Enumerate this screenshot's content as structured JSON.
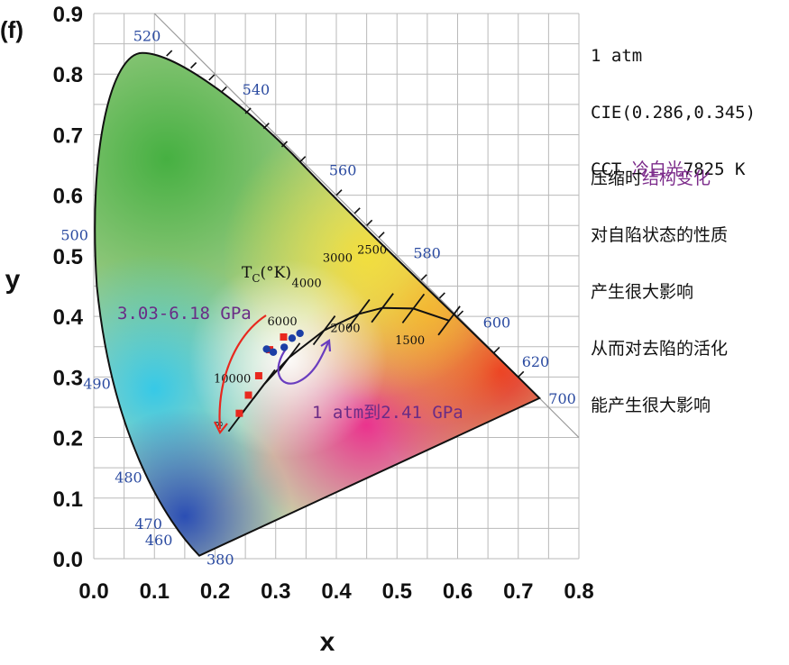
{
  "chart_data": {
    "type": "scatter",
    "panel_label": "(f)",
    "xlabel": "x",
    "ylabel": "y",
    "xlim": [
      0.0,
      0.8
    ],
    "ylim": [
      0.0,
      0.9
    ],
    "xticks": [
      "0.0",
      "0.1",
      "0.2",
      "0.3",
      "0.4",
      "0.5",
      "0.6",
      "0.7",
      "0.8"
    ],
    "yticks": [
      "0.0",
      "0.1",
      "0.2",
      "0.3",
      "0.4",
      "0.5",
      "0.6",
      "0.7",
      "0.8",
      "0.9"
    ],
    "grid": true,
    "spectral_locus": [
      {
        "nm": "380",
        "x": 0.174,
        "y": 0.005
      },
      {
        "nm": "460",
        "x": 0.144,
        "y": 0.03
      },
      {
        "nm": "470",
        "x": 0.124,
        "y": 0.058
      },
      {
        "nm": "480",
        "x": 0.091,
        "y": 0.133
      },
      {
        "nm": "490",
        "x": 0.045,
        "y": 0.295
      },
      {
        "nm": "500",
        "x": 0.008,
        "y": 0.538
      },
      {
        "nm": "520",
        "x": 0.074,
        "y": 0.834
      },
      {
        "nm": "540",
        "x": 0.23,
        "y": 0.754
      },
      {
        "nm": "560",
        "x": 0.373,
        "y": 0.624
      },
      {
        "nm": "580",
        "x": 0.512,
        "y": 0.487
      },
      {
        "nm": "600",
        "x": 0.627,
        "y": 0.373
      },
      {
        "nm": "620",
        "x": 0.691,
        "y": 0.308
      },
      {
        "nm": "700",
        "x": 0.735,
        "y": 0.265
      }
    ],
    "planckian_locus_label": "T",
    "planckian_locus_label_sub": "C",
    "planckian_locus_label_unit": "(°K)",
    "planckian_locus": [
      {
        "T": "∞",
        "x": 0.24,
        "y": 0.234
      },
      {
        "T": "10000",
        "x": 0.281,
        "y": 0.288
      },
      {
        "T": "6000",
        "x": 0.322,
        "y": 0.332
      },
      {
        "T": "4000",
        "x": 0.38,
        "y": 0.377
      },
      {
        "T": "3000",
        "x": 0.437,
        "y": 0.404
      },
      {
        "T": "2500",
        "x": 0.476,
        "y": 0.414
      },
      {
        "T": "2000",
        "x": 0.527,
        "y": 0.413
      },
      {
        "T": "1500",
        "x": 0.586,
        "y": 0.393
      }
    ],
    "series": [
      {
        "color": "#e8281e",
        "marker": "square",
        "points": [
          {
            "x": 0.24,
            "y": 0.24
          },
          {
            "x": 0.255,
            "y": 0.27
          },
          {
            "x": 0.272,
            "y": 0.302
          },
          {
            "x": 0.29,
            "y": 0.345
          },
          {
            "x": 0.313,
            "y": 0.366
          }
        ]
      },
      {
        "color": "#1c3fa6",
        "marker": "circle",
        "points": [
          {
            "x": 0.285,
            "y": 0.346
          },
          {
            "x": 0.296,
            "y": 0.341
          },
          {
            "x": 0.314,
            "y": 0.349
          },
          {
            "x": 0.327,
            "y": 0.364
          },
          {
            "x": 0.34,
            "y": 0.372
          }
        ]
      }
    ],
    "annotations": [
      {
        "text": "3.03-6.18 GPa",
        "color": "#6a2c86"
      },
      {
        "text": "1 atm到2.41 GPa",
        "color": "#6a2c86"
      }
    ]
  },
  "side_notes": {
    "line1": "1 atm",
    "line2": "CIE(0.286,0.345)",
    "line3_prefix": "CCT ",
    "line3_highlight": "冷白光",
    "line3_suffix": "7825 K",
    "para_line1_prefix": "压缩时",
    "para_line1_highlight": "结构变化",
    "para_line2": "对自陷状态的性质",
    "para_line3": "产生很大影响",
    "para_line4": "从而对去陷的活化",
    "para_line5": "能产生很大影响"
  }
}
